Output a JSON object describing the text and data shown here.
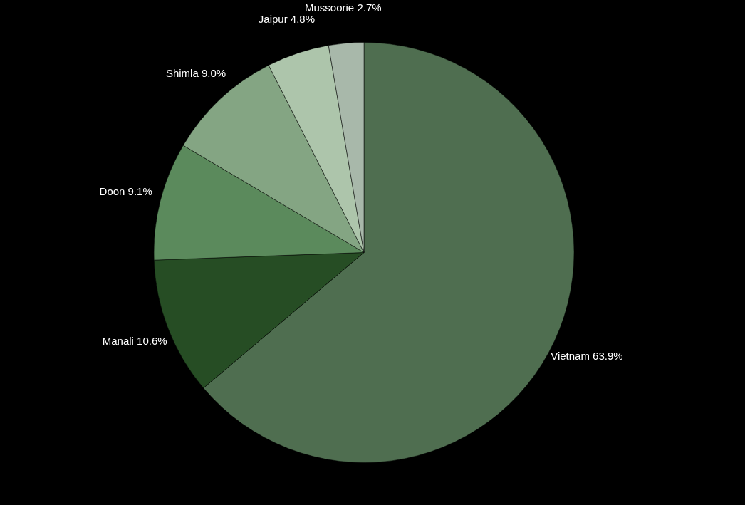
{
  "chart_data": {
    "type": "pie",
    "categories": [
      "Vietnam",
      "Manali",
      "Doon",
      "Shimla",
      "Jaipur",
      "Mussoorie"
    ],
    "values": [
      63.9,
      10.6,
      9.1,
      9.0,
      4.8,
      2.7
    ],
    "colors": [
      "#4f6e50",
      "#264d24",
      "#5b8a5c",
      "#84a583",
      "#adc5ab",
      "#a8b8aa"
    ],
    "value_labels": [
      "63.9%",
      "10.6%",
      "9.1%",
      "9.0%",
      "4.8%",
      "2.7%"
    ]
  }
}
